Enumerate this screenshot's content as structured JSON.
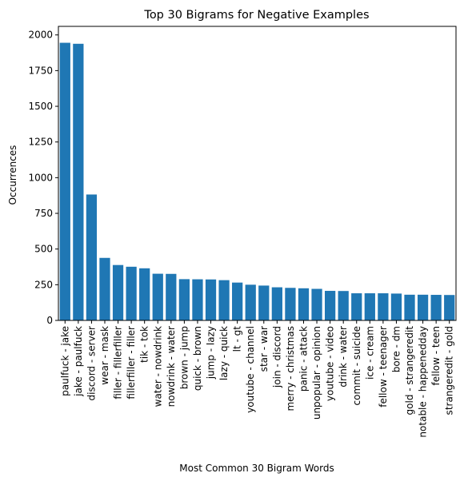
{
  "chart_data": {
    "type": "bar",
    "title": "Top 30 Bigrams for Negative Examples",
    "xlabel": "Most Common 30 Bigram Words",
    "ylabel": "Occurrences",
    "ylim": [
      0,
      2060
    ],
    "yticks": [
      0,
      250,
      500,
      750,
      1000,
      1250,
      1500,
      1750,
      2000
    ],
    "grid": false,
    "categories": [
      "paulfuck - jake",
      "jake - paulfuck",
      "discord - server",
      "wear - mask",
      "filler - fillerfiller",
      "fillerfiller - filler",
      "tik - tok",
      "water - nowdrink",
      "nowdrink - water",
      "brown - jump",
      "quick - brown",
      "jump - lazy",
      "lazy - quick",
      "lt - gt",
      "youtube - channel",
      "star - war",
      "join - discord",
      "merry - christmas",
      "panic - attack",
      "unpopular - opinion",
      "youtube - video",
      "drink - water",
      "commit - suicide",
      "ice - cream",
      "fellow - teenager",
      "bore - dm",
      "gold - strangeredit",
      "notable - happenedday",
      "fellow - teen",
      "strangeredit - gold"
    ],
    "values": [
      1945,
      1938,
      882,
      438,
      388,
      376,
      365,
      327,
      326,
      289,
      288,
      287,
      282,
      265,
      250,
      244,
      232,
      228,
      225,
      221,
      207,
      206,
      190,
      190,
      190,
      188,
      180,
      180,
      179,
      178
    ],
    "color": "#1f77b4"
  }
}
